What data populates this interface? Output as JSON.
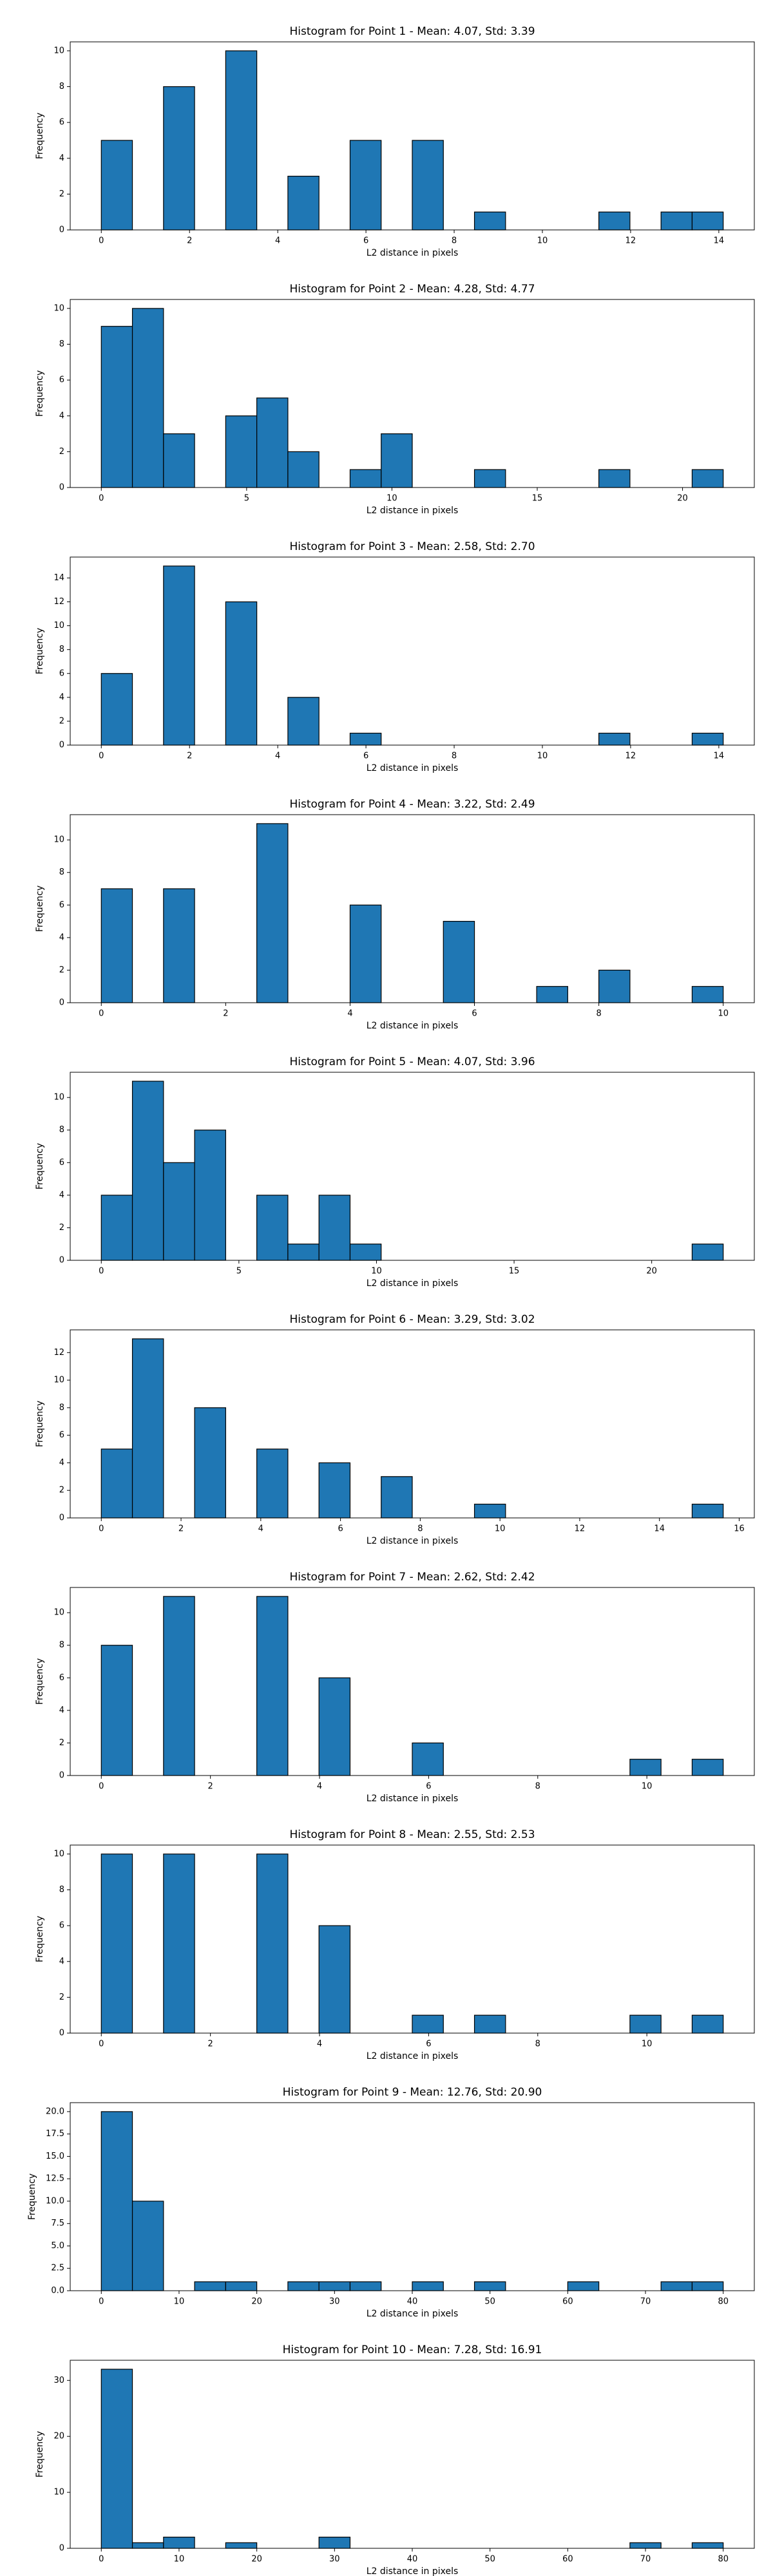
{
  "chart_data": [
    {
      "type": "histogram",
      "title": "Histogram for Point 1 - Mean: 4.07, Std: 3.39",
      "xlabel": "L2 distance in pixels",
      "ylabel": "Frequency",
      "color": "#1f77b4",
      "edgecolor": "#000000",
      "bins": [
        0,
        0.705,
        1.41,
        2.115,
        2.82,
        3.525,
        4.23,
        4.935,
        5.64,
        6.345,
        7.05,
        7.755,
        8.46,
        9.165,
        9.87,
        10.575,
        11.28,
        11.985,
        12.69,
        13.395,
        14.1
      ],
      "counts": [
        5,
        0,
        8,
        0,
        10,
        0,
        3,
        0,
        5,
        0,
        5,
        0,
        1,
        0,
        0,
        0,
        1,
        0,
        1,
        1
      ],
      "xlim": [
        -0.705,
        14.805
      ],
      "xticks": [
        0,
        2,
        4,
        6,
        8,
        10,
        12,
        14
      ],
      "ylim": [
        0,
        10.5
      ],
      "yticks": [
        0,
        2,
        4,
        6,
        8,
        10
      ]
    },
    {
      "type": "histogram",
      "title": "Histogram for Point 2 - Mean: 4.28, Std: 4.77",
      "xlabel": "L2 distance in pixels",
      "ylabel": "Frequency",
      "color": "#1f77b4",
      "edgecolor": "#000000",
      "bins": [
        0,
        1.07,
        2.14,
        3.21,
        4.28,
        5.35,
        6.42,
        7.49,
        8.56,
        9.63,
        10.7,
        11.77,
        12.84,
        13.91,
        14.98,
        16.05,
        17.12,
        18.19,
        19.26,
        20.33,
        21.4
      ],
      "counts": [
        9,
        10,
        3,
        0,
        4,
        5,
        2,
        0,
        1,
        3,
        0,
        0,
        1,
        0,
        0,
        0,
        1,
        0,
        0,
        1
      ],
      "xlim": [
        -1.07,
        22.47
      ],
      "xticks": [
        0,
        5,
        10,
        15,
        20
      ],
      "ylim": [
        0,
        10.5
      ],
      "yticks": [
        0,
        2,
        4,
        6,
        8,
        10
      ]
    },
    {
      "type": "histogram",
      "title": "Histogram for Point 3 - Mean: 2.58, Std: 2.70",
      "xlabel": "L2 distance in pixels",
      "ylabel": "Frequency",
      "color": "#1f77b4",
      "edgecolor": "#000000",
      "bins": [
        0,
        0.705,
        1.41,
        2.115,
        2.82,
        3.525,
        4.23,
        4.935,
        5.64,
        6.345,
        7.05,
        7.755,
        8.46,
        9.165,
        9.87,
        10.575,
        11.28,
        11.985,
        12.69,
        13.395,
        14.1
      ],
      "counts": [
        6,
        0,
        15,
        0,
        12,
        0,
        4,
        0,
        1,
        0,
        0,
        0,
        0,
        0,
        0,
        0,
        1,
        0,
        0,
        1
      ],
      "xlim": [
        -0.705,
        14.805
      ],
      "xticks": [
        0,
        2,
        4,
        6,
        8,
        10,
        12,
        14
      ],
      "ylim": [
        0,
        15.75
      ],
      "yticks": [
        0,
        2,
        4,
        6,
        8,
        10,
        12,
        14
      ]
    },
    {
      "type": "histogram",
      "title": "Histogram for Point 4 - Mean: 3.22, Std: 2.49",
      "xlabel": "L2 distance in pixels",
      "ylabel": "Frequency",
      "color": "#1f77b4",
      "edgecolor": "#000000",
      "bins": [
        0,
        0.5,
        1,
        1.5,
        2,
        2.5,
        3,
        3.5,
        4,
        4.5,
        5,
        5.5,
        6,
        6.5,
        7,
        7.5,
        8,
        8.5,
        9,
        9.5,
        10
      ],
      "counts": [
        7,
        0,
        7,
        0,
        0,
        11,
        0,
        0,
        6,
        0,
        0,
        5,
        0,
        0,
        1,
        0,
        2,
        0,
        0,
        1
      ],
      "xlim": [
        -0.5,
        10.5
      ],
      "xticks": [
        0,
        2,
        4,
        6,
        8,
        10
      ],
      "ylim": [
        0,
        11.55
      ],
      "yticks": [
        0,
        2,
        4,
        6,
        8,
        10
      ]
    },
    {
      "type": "histogram",
      "title": "Histogram for Point 5 - Mean: 4.07, Std: 3.96",
      "xlabel": "L2 distance in pixels",
      "ylabel": "Frequency",
      "color": "#1f77b4",
      "edgecolor": "#000000",
      "bins": [
        0,
        1.13,
        2.26,
        3.39,
        4.52,
        5.65,
        6.78,
        7.91,
        9.04,
        10.17,
        11.3,
        12.43,
        13.56,
        14.69,
        15.82,
        16.95,
        18.08,
        19.21,
        20.34,
        21.47,
        22.6
      ],
      "counts": [
        4,
        11,
        6,
        8,
        0,
        4,
        1,
        4,
        1,
        0,
        0,
        0,
        0,
        0,
        0,
        0,
        0,
        0,
        0,
        1
      ],
      "xlim": [
        -1.13,
        23.73
      ],
      "xticks": [
        0,
        5,
        10,
        15,
        20
      ],
      "ylim": [
        0,
        11.55
      ],
      "yticks": [
        0,
        2,
        4,
        6,
        8,
        10
      ]
    },
    {
      "type": "histogram",
      "title": "Histogram for Point 6 - Mean: 3.29, Std: 3.02",
      "xlabel": "L2 distance in pixels",
      "ylabel": "Frequency",
      "color": "#1f77b4",
      "edgecolor": "#000000",
      "bins": [
        0,
        0.78,
        1.56,
        2.34,
        3.12,
        3.9,
        4.68,
        5.46,
        6.24,
        7.02,
        7.8,
        8.58,
        9.36,
        10.14,
        10.92,
        11.7,
        12.48,
        13.26,
        14.04,
        14.82,
        15.6
      ],
      "counts": [
        5,
        13,
        0,
        8,
        0,
        5,
        0,
        4,
        0,
        3,
        0,
        0,
        1,
        0,
        0,
        0,
        0,
        0,
        0,
        1
      ],
      "xlim": [
        -0.78,
        16.38
      ],
      "xticks": [
        0,
        2,
        4,
        6,
        8,
        10,
        12,
        14,
        16
      ],
      "ylim": [
        0,
        13.65
      ],
      "yticks": [
        0,
        2,
        4,
        6,
        8,
        10,
        12
      ]
    },
    {
      "type": "histogram",
      "title": "Histogram for Point 7 - Mean: 2.62, Std: 2.42",
      "xlabel": "L2 distance in pixels",
      "ylabel": "Frequency",
      "color": "#1f77b4",
      "edgecolor": "#000000",
      "bins": [
        0,
        0.57,
        1.14,
        1.71,
        2.28,
        2.85,
        3.42,
        3.99,
        4.56,
        5.13,
        5.7,
        6.27,
        6.84,
        7.41,
        7.98,
        8.55,
        9.12,
        9.69,
        10.26,
        10.83,
        11.4
      ],
      "counts": [
        8,
        0,
        11,
        0,
        0,
        11,
        0,
        6,
        0,
        0,
        2,
        0,
        0,
        0,
        0,
        0,
        0,
        1,
        0,
        1
      ],
      "xlim": [
        -0.57,
        11.97
      ],
      "xticks": [
        0,
        2,
        4,
        6,
        8,
        10
      ],
      "ylim": [
        0,
        11.55
      ],
      "yticks": [
        0,
        2,
        4,
        6,
        8,
        10
      ]
    },
    {
      "type": "histogram",
      "title": "Histogram for Point 8 - Mean: 2.55, Std: 2.53",
      "xlabel": "L2 distance in pixels",
      "ylabel": "Frequency",
      "color": "#1f77b4",
      "edgecolor": "#000000",
      "bins": [
        0,
        0.57,
        1.14,
        1.71,
        2.28,
        2.85,
        3.42,
        3.99,
        4.56,
        5.13,
        5.7,
        6.27,
        6.84,
        7.41,
        7.98,
        8.55,
        9.12,
        9.69,
        10.26,
        10.83,
        11.4
      ],
      "counts": [
        10,
        0,
        10,
        0,
        0,
        10,
        0,
        6,
        0,
        0,
        1,
        0,
        1,
        0,
        0,
        0,
        0,
        1,
        0,
        1
      ],
      "xlim": [
        -0.57,
        11.97
      ],
      "xticks": [
        0,
        2,
        4,
        6,
        8,
        10
      ],
      "ylim": [
        0,
        10.5
      ],
      "yticks": [
        0,
        2,
        4,
        6,
        8,
        10
      ]
    },
    {
      "type": "histogram",
      "title": "Histogram for Point 9 - Mean: 12.76, Std: 20.90",
      "xlabel": "L2 distance in pixels",
      "ylabel": "Frequency",
      "color": "#1f77b4",
      "edgecolor": "#000000",
      "bins": [
        0,
        4,
        8,
        12,
        16,
        20,
        24,
        28,
        32,
        36,
        40,
        44,
        48,
        52,
        56,
        60,
        64,
        68,
        72,
        76,
        80
      ],
      "counts": [
        20,
        10,
        0,
        1,
        1,
        0,
        1,
        1,
        1,
        0,
        1,
        0,
        1,
        0,
        0,
        1,
        0,
        0,
        1,
        1
      ],
      "xlim": [
        -4,
        84
      ],
      "xticks": [
        0,
        10,
        20,
        30,
        40,
        50,
        60,
        70,
        80
      ],
      "ylim": [
        0,
        21
      ],
      "yticks": [
        {
          "value": 0,
          "label": "0.0"
        },
        {
          "value": 2.5,
          "label": "2.5"
        },
        {
          "value": 5,
          "label": "5.0"
        },
        {
          "value": 7.5,
          "label": "7.5"
        },
        {
          "value": 10,
          "label": "10.0"
        },
        {
          "value": 12.5,
          "label": "12.5"
        },
        {
          "value": 15,
          "label": "15.0"
        },
        {
          "value": 17.5,
          "label": "17.5"
        },
        {
          "value": 20,
          "label": "20.0"
        }
      ]
    },
    {
      "type": "histogram",
      "title": "Histogram for Point 10 - Mean: 7.28, Std: 16.91",
      "xlabel": "L2 distance in pixels",
      "ylabel": "Frequency",
      "color": "#1f77b4",
      "edgecolor": "#000000",
      "bins": [
        0,
        4,
        8,
        12,
        16,
        20,
        24,
        28,
        32,
        36,
        40,
        44,
        48,
        52,
        56,
        60,
        64,
        68,
        72,
        76,
        80
      ],
      "counts": [
        32,
        1,
        2,
        0,
        1,
        0,
        0,
        2,
        0,
        0,
        0,
        0,
        0,
        0,
        0,
        0,
        0,
        1,
        0,
        1
      ],
      "xlim": [
        -4,
        84
      ],
      "xticks": [
        0,
        10,
        20,
        30,
        40,
        50,
        60,
        70,
        80
      ],
      "ylim": [
        0,
        33.6
      ],
      "yticks": [
        0,
        10,
        20,
        30
      ]
    }
  ]
}
